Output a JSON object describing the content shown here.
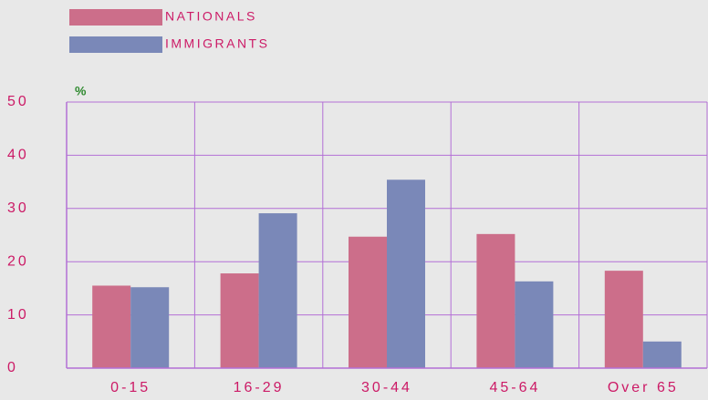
{
  "chart_data": {
    "type": "bar",
    "categories": [
      "0-15",
      "16-29",
      "30-44",
      "45-64",
      "Over 65"
    ],
    "series": [
      {
        "name": "NATIONALS",
        "color": "#cc6e8a",
        "values": [
          15.5,
          17.8,
          24.7,
          25.2,
          18.3
        ]
      },
      {
        "name": "IMMIGRANTS",
        "color": "#7a88b8",
        "values": [
          15.2,
          29.1,
          35.4,
          16.3,
          5.0
        ]
      }
    ],
    "y_unit_label": "%",
    "ylim": [
      0,
      50
    ],
    "yticks": [
      0,
      10,
      20,
      30,
      40,
      50
    ],
    "grid": true,
    "legend": "top-left"
  }
}
